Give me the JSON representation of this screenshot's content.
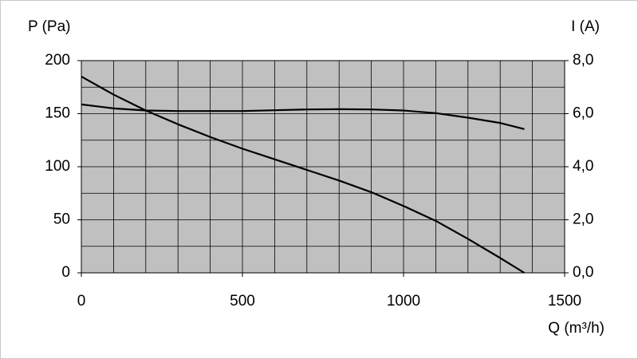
{
  "chart_data": {
    "type": "line",
    "ylabel": "P (Pa)",
    "y2label": "I (A)",
    "xlabel": "Q (m³/h)",
    "x": [
      0,
      100,
      200,
      300,
      400,
      500,
      600,
      700,
      800,
      900,
      1000,
      1100,
      1200,
      1300,
      1375
    ],
    "series": [
      {
        "color": "#000000",
        "values": [
          185,
          168,
          153,
          140,
          128,
          117,
          107,
          97,
          87,
          76,
          63,
          49,
          32,
          14,
          0
        ]
      },
      {
        "color": "#000000",
        "axis": "y2",
        "values": [
          6.35,
          6.2,
          6.12,
          6.1,
          6.1,
          6.1,
          6.13,
          6.16,
          6.17,
          6.16,
          6.12,
          6.02,
          5.85,
          5.65,
          5.42
        ]
      }
    ],
    "xlim": [
      0,
      1500
    ],
    "xticks": [
      0,
      500,
      1000,
      1500
    ],
    "xminor": [
      100,
      200,
      300,
      400,
      600,
      700,
      800,
      900,
      1100,
      1200,
      1300,
      1400
    ],
    "ylim": [
      0,
      200
    ],
    "yticks": [
      0,
      50,
      100,
      150,
      200
    ],
    "yminor": [
      25,
      75,
      125,
      175
    ],
    "y2lim": [
      0,
      8
    ],
    "y2ticks": [
      {
        "value": 0,
        "label": "0,0"
      },
      {
        "value": 2,
        "label": "2,0"
      },
      {
        "value": 4,
        "label": "4,0"
      },
      {
        "value": 6,
        "label": "6,0"
      },
      {
        "value": 8,
        "label": "8,0"
      }
    ],
    "grid": true,
    "plot_background": "#c0c0c0"
  }
}
